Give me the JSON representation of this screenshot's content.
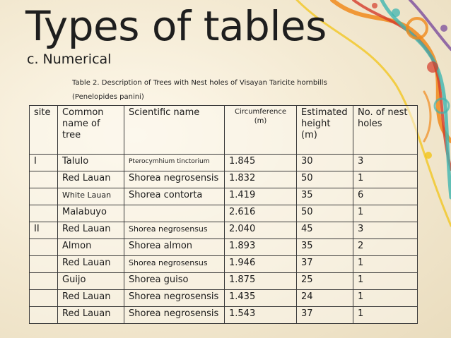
{
  "title": "Types of tables",
  "subtitle": "c. Numerical",
  "caption": {
    "line1": "Table 2. Description of Trees with Nest holes of Visayan Taricite hornbills",
    "line2": "(Penelopides panini)"
  },
  "table": {
    "headers": {
      "site": "site",
      "common_name": "Common name of tree",
      "scientific_name": "Scientific name",
      "circumference": "Circumference (m)",
      "height": "Estimated height (m)",
      "holes": "No. of nest holes"
    },
    "rows": [
      {
        "site": "I",
        "common": "Talulo",
        "scientific": "Pterocymhium tinctorium",
        "circ": "1.845",
        "height": "30",
        "holes": "3"
      },
      {
        "site": "",
        "common": "Red Lauan",
        "scientific": "Shorea negrosensis",
        "circ": "1.832",
        "height": "50",
        "holes": "1"
      },
      {
        "site": "",
        "common": "White Lauan",
        "scientific": "Shorea contorta",
        "circ": "1.419",
        "height": "35",
        "holes": "6"
      },
      {
        "site": "",
        "common": "Malabuyo",
        "scientific": "",
        "circ": "2.616",
        "height": "50",
        "holes": "1"
      },
      {
        "site": "II",
        "common": "Red Lauan",
        "scientific": "Shorea negrosensus",
        "circ": "2.040",
        "height": "45",
        "holes": "3"
      },
      {
        "site": "",
        "common": "Almon",
        "scientific": "Shorea almon",
        "circ": "1.893",
        "height": "35",
        "holes": "2"
      },
      {
        "site": "",
        "common": "Red Lauan",
        "scientific": "Shorea negrosensus",
        "circ": "1.946",
        "height": "37",
        "holes": "1"
      },
      {
        "site": "",
        "common": "Guijo",
        "scientific": "Shorea guiso",
        "circ": "1.875",
        "height": "25",
        "holes": "1"
      },
      {
        "site": "",
        "common": "Red Lauan",
        "scientific": "Shorea negrosensis",
        "circ": "1.435",
        "height": "24",
        "holes": "1"
      },
      {
        "site": "",
        "common": "Red Lauan",
        "scientific": "Shorea negrosensis",
        "circ": "1.543",
        "height": "37",
        "holes": "1"
      }
    ]
  },
  "colors": {
    "background": "#f1e7cf",
    "accent_orange": "#f08a1c",
    "accent_red": "#d43b2a",
    "accent_teal": "#3fb5b0",
    "accent_yellow": "#f2c417",
    "accent_purple": "#7a4c9c"
  }
}
